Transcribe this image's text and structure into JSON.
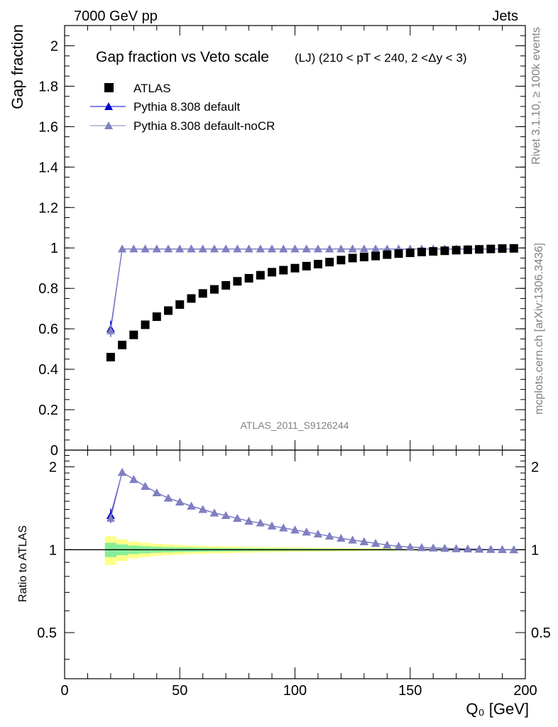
{
  "header": {
    "left": "7000 GeV pp",
    "right": "Jets"
  },
  "side_labels": {
    "top": "Rivet 3.1.10, ≥ 100k events",
    "bottom": "mcplots.cern.ch [arXiv:1306.3436]"
  },
  "watermark": "ATLAS_2011_S9126244",
  "colors": {
    "data": "#000000",
    "default": "#0000cc",
    "noCR": "#8080c0",
    "band_inner": "#88ee99",
    "band_outer": "#ffff88",
    "reference_line": "#000000"
  },
  "chart_data": [
    {
      "type": "scatter",
      "panel": "main",
      "title": "Gap fraction vs Veto scale",
      "subtitle": "(LJ) (210 < pT < 240, 2 <Δy < 3)",
      "ylabel": "Gap fraction",
      "ylim": [
        0,
        2.1
      ],
      "xlim": [
        0,
        200
      ],
      "yticks": [
        0,
        0.2,
        0.4,
        0.6,
        0.8,
        1,
        1.2,
        1.4,
        1.6,
        1.8,
        2
      ],
      "ytick_labels": [
        "0",
        "0.2",
        "0.4",
        "0.6",
        "0.8",
        "1",
        "1.2",
        "1.4",
        "1.6",
        "1.8",
        "2"
      ],
      "legend_position": "top-left",
      "x": [
        20,
        25,
        30,
        35,
        40,
        45,
        50,
        55,
        60,
        65,
        70,
        75,
        80,
        85,
        90,
        95,
        100,
        105,
        110,
        115,
        120,
        125,
        130,
        135,
        140,
        145,
        150,
        155,
        160,
        165,
        170,
        175,
        180,
        185,
        190,
        195
      ],
      "series": [
        {
          "name": "ATLAS",
          "marker": "square",
          "values": [
            0.46,
            0.52,
            0.57,
            0.62,
            0.66,
            0.69,
            0.72,
            0.75,
            0.775,
            0.795,
            0.815,
            0.835,
            0.85,
            0.865,
            0.88,
            0.89,
            0.9,
            0.91,
            0.92,
            0.93,
            0.94,
            0.95,
            0.955,
            0.96,
            0.967,
            0.972,
            0.976,
            0.98,
            0.983,
            0.986,
            0.989,
            0.991,
            0.993,
            0.995,
            0.997,
            0.998
          ]
        },
        {
          "name": "Pythia 8.308 default",
          "marker": "triangle",
          "values": [
            0.6,
            0.995,
            0.995,
            0.995,
            0.995,
            0.995,
            0.995,
            0.995,
            0.995,
            0.995,
            0.995,
            0.995,
            0.995,
            0.995,
            0.995,
            0.995,
            0.995,
            0.995,
            0.995,
            0.995,
            0.995,
            0.995,
            0.995,
            0.995,
            0.995,
            0.995,
            0.995,
            0.995,
            0.995,
            0.995,
            0.995,
            0.995,
            0.995,
            0.995,
            0.995,
            0.995
          ],
          "first_error": 0.04
        },
        {
          "name": "Pythia 8.308 default-noCR",
          "marker": "triangle",
          "values": [
            0.59,
            0.995,
            0.995,
            0.995,
            0.995,
            0.995,
            0.995,
            0.995,
            0.995,
            0.995,
            0.995,
            0.995,
            0.995,
            0.995,
            0.995,
            0.995,
            0.995,
            0.995,
            0.995,
            0.995,
            0.995,
            0.995,
            0.995,
            0.995,
            0.995,
            0.995,
            0.995,
            0.995,
            0.995,
            0.995,
            0.995,
            0.995,
            0.995,
            0.995,
            0.995,
            0.995
          ],
          "first_error": 0.03
        }
      ]
    },
    {
      "type": "line",
      "panel": "ratio",
      "ylabel": "Ratio to ATLAS",
      "xlabel": "Q₀ [GeV]",
      "xlim": [
        0,
        200
      ],
      "ylim": [
        0.34,
        2.3
      ],
      "xticks": [
        0,
        50,
        100,
        150,
        200
      ],
      "xtick_labels": [
        "0",
        "50",
        "100",
        "150",
        "200"
      ],
      "yticks": [
        0.5,
        1,
        2
      ],
      "ytick_labels": [
        "0.5",
        "1",
        "2"
      ],
      "x": [
        20,
        25,
        30,
        35,
        40,
        45,
        50,
        55,
        60,
        65,
        70,
        75,
        80,
        85,
        90,
        95,
        100,
        105,
        110,
        115,
        120,
        125,
        130,
        135,
        140,
        145,
        150,
        155,
        160,
        165,
        170,
        175,
        180,
        185,
        190,
        195
      ],
      "series": [
        {
          "name": "Pythia 8.308 default",
          "values": [
            1.33,
            1.91,
            1.8,
            1.7,
            1.61,
            1.54,
            1.49,
            1.44,
            1.4,
            1.36,
            1.33,
            1.3,
            1.27,
            1.25,
            1.22,
            1.2,
            1.18,
            1.16,
            1.14,
            1.12,
            1.1,
            1.085,
            1.07,
            1.055,
            1.04,
            1.03,
            1.022,
            1.018,
            1.015,
            1.012,
            1.009,
            1.007,
            1.005,
            1.003,
            1.002,
            1.0
          ],
          "first_error": 0.08
        },
        {
          "name": "Pythia 8.308 default-noCR",
          "values": [
            1.3,
            1.91,
            1.8,
            1.7,
            1.61,
            1.54,
            1.49,
            1.44,
            1.4,
            1.36,
            1.33,
            1.3,
            1.27,
            1.25,
            1.22,
            1.2,
            1.18,
            1.16,
            1.14,
            1.12,
            1.1,
            1.085,
            1.07,
            1.055,
            1.04,
            1.03,
            1.022,
            1.018,
            1.015,
            1.012,
            1.009,
            1.007,
            1.005,
            1.003,
            1.002,
            1.0
          ],
          "first_error": 0.05
        }
      ],
      "band_inner_halfwidth": [
        0.06,
        0.045,
        0.035,
        0.03,
        0.025,
        0.022,
        0.02,
        0.018,
        0.016,
        0.015,
        0.014,
        0.013,
        0.012,
        0.011,
        0.01,
        0.01,
        0.009,
        0.009,
        0.008,
        0.008,
        0.007,
        0.007,
        0.006,
        0.006,
        0.006,
        0.005,
        0.005,
        0.005,
        0.004,
        0.004,
        0.004,
        0.004,
        0.003,
        0.003,
        0.003,
        0.003
      ],
      "band_outer_halfwidth": [
        0.12,
        0.09,
        0.07,
        0.06,
        0.05,
        0.045,
        0.04,
        0.035,
        0.032,
        0.03,
        0.028,
        0.026,
        0.024,
        0.022,
        0.02,
        0.019,
        0.018,
        0.017,
        0.016,
        0.015,
        0.014,
        0.013,
        0.012,
        0.011,
        0.01,
        0.009,
        0.008,
        0.007,
        0.006,
        0.006,
        0.005,
        0.005,
        0.005,
        0.004,
        0.004,
        0.004
      ]
    }
  ]
}
